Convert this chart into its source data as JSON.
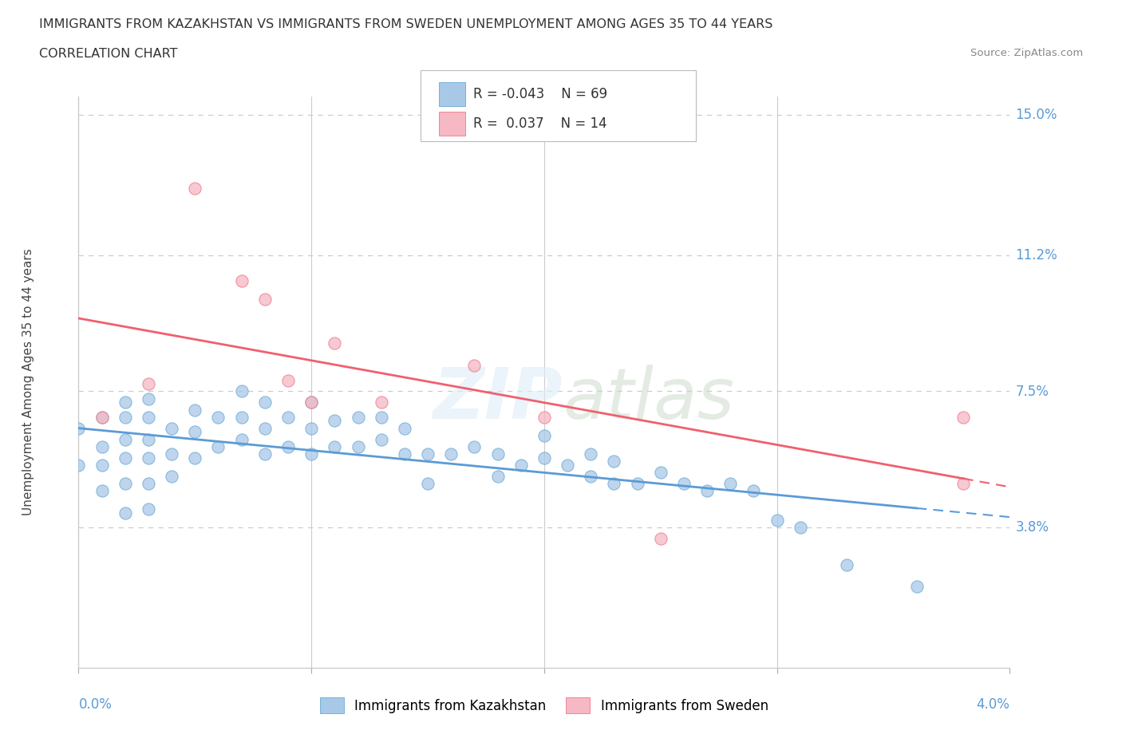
{
  "title": "IMMIGRANTS FROM KAZAKHSTAN VS IMMIGRANTS FROM SWEDEN UNEMPLOYMENT AMONG AGES 35 TO 44 YEARS",
  "subtitle": "CORRELATION CHART",
  "source": "Source: ZipAtlas.com",
  "ylabel": "Unemployment Among Ages 35 to 44 years",
  "xlim": [
    0.0,
    0.04
  ],
  "ylim": [
    0.0,
    0.155
  ],
  "ytick_vals": [
    0.038,
    0.075,
    0.112,
    0.15
  ],
  "ytick_labels": [
    "3.8%",
    "7.5%",
    "11.2%",
    "15.0%"
  ],
  "gridline_color": "#cccccc",
  "background_color": "#ffffff",
  "kazakh_color": "#a8c8e8",
  "sweden_color": "#f5b8c4",
  "kazakh_edge_color": "#6aaad4",
  "sweden_edge_color": "#f07888",
  "kazakh_line_color": "#5b9bd5",
  "sweden_line_color": "#f0606e",
  "label_color": "#5b9bd5",
  "legend_R_kazakh": "-0.043",
  "legend_N_kazakh": "69",
  "legend_R_sweden": "0.037",
  "legend_N_sweden": "14",
  "watermark_text": "ZIPatlas",
  "kaz_x": [
    0.0,
    0.0,
    0.001,
    0.001,
    0.001,
    0.001,
    0.002,
    0.002,
    0.002,
    0.002,
    0.002,
    0.002,
    0.003,
    0.003,
    0.003,
    0.003,
    0.003,
    0.003,
    0.004,
    0.004,
    0.004,
    0.005,
    0.005,
    0.005,
    0.006,
    0.006,
    0.007,
    0.007,
    0.007,
    0.008,
    0.008,
    0.008,
    0.009,
    0.009,
    0.01,
    0.01,
    0.01,
    0.011,
    0.011,
    0.012,
    0.012,
    0.013,
    0.013,
    0.014,
    0.014,
    0.015,
    0.015,
    0.016,
    0.017,
    0.018,
    0.018,
    0.019,
    0.02,
    0.02,
    0.021,
    0.022,
    0.022,
    0.023,
    0.023,
    0.024,
    0.025,
    0.026,
    0.027,
    0.028,
    0.029,
    0.03,
    0.031,
    0.033,
    0.036
  ],
  "kaz_y": [
    0.055,
    0.065,
    0.048,
    0.055,
    0.06,
    0.068,
    0.042,
    0.05,
    0.057,
    0.062,
    0.068,
    0.072,
    0.043,
    0.05,
    0.057,
    0.062,
    0.068,
    0.073,
    0.052,
    0.058,
    0.065,
    0.057,
    0.064,
    0.07,
    0.06,
    0.068,
    0.062,
    0.068,
    0.075,
    0.058,
    0.065,
    0.072,
    0.06,
    0.068,
    0.058,
    0.065,
    0.072,
    0.06,
    0.067,
    0.06,
    0.068,
    0.062,
    0.068,
    0.058,
    0.065,
    0.05,
    0.058,
    0.058,
    0.06,
    0.052,
    0.058,
    0.055,
    0.057,
    0.063,
    0.055,
    0.052,
    0.058,
    0.05,
    0.056,
    0.05,
    0.053,
    0.05,
    0.048,
    0.05,
    0.048,
    0.04,
    0.038,
    0.028,
    0.022
  ],
  "swe_x": [
    0.001,
    0.003,
    0.005,
    0.007,
    0.008,
    0.009,
    0.01,
    0.011,
    0.013,
    0.017,
    0.02,
    0.025,
    0.038,
    0.038
  ],
  "swe_y": [
    0.068,
    0.077,
    0.13,
    0.105,
    0.1,
    0.078,
    0.072,
    0.088,
    0.072,
    0.082,
    0.068,
    0.035,
    0.05,
    0.068
  ]
}
